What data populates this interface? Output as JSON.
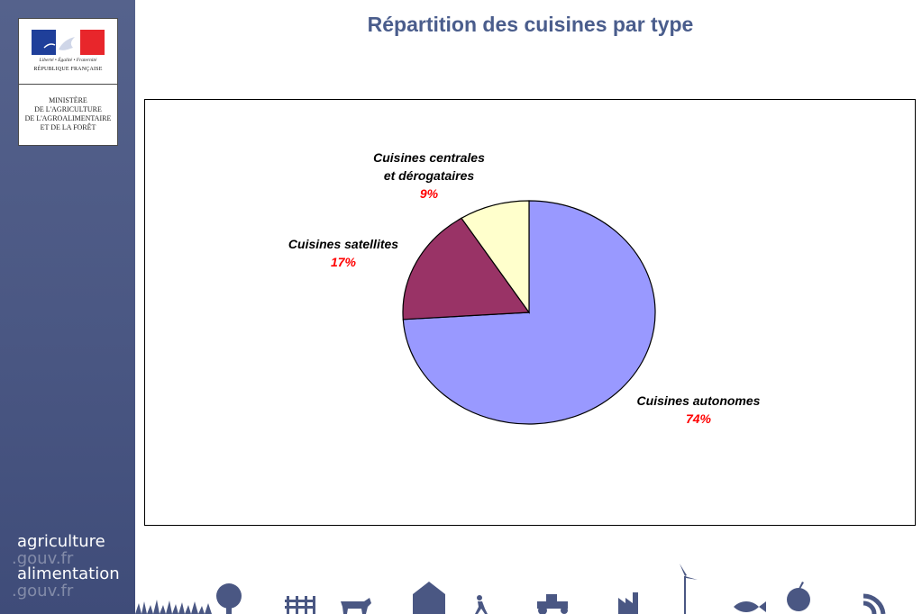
{
  "sidebar": {
    "logo": {
      "motto": "Liberté • Égalité • Fraternité",
      "republique": "RÉPUBLIQUE FRANÇAISE",
      "ministry_lines": [
        "MINISTÈRE",
        "DE L'AGRICULTURE",
        "DE L'AGROALIMENTAIRE",
        "ET DE LA FORÊT"
      ]
    },
    "brand": [
      {
        "word": "agriculture",
        "suffix": ".gouv.fr"
      },
      {
        "word": "alimentation",
        "suffix": ".gouv.fr"
      }
    ]
  },
  "colors": {
    "sidebar": "#4a5783",
    "title": "#4a5d8c",
    "percent_label": "#ff0000",
    "flag_blue": "#1f3f9a",
    "flag_red": "#e8262b",
    "icon_strip": "#4a5783"
  },
  "bottom_strip": {
    "icons": [
      "grass-icon",
      "tree-icon",
      "fence-icon",
      "cow-icon",
      "farmhouse-icon",
      "walker-icon",
      "tractor-icon",
      "factory-icon",
      "wind-turbine-icon",
      "fish-icon",
      "apple-icon",
      "rss-icon"
    ]
  },
  "chart_data": {
    "type": "pie",
    "title": "Répartition des cuisines par type",
    "slices": [
      {
        "label": "Cuisines autonomes",
        "value": 74,
        "value_label": "74%",
        "color": "#9999ff"
      },
      {
        "label": "Cuisines satellites",
        "value": 17,
        "value_label": "17%",
        "color": "#993366"
      },
      {
        "label": "Cuisines centrales et dérogataires",
        "value": 9,
        "value_label": "9%",
        "color": "#ffffcc"
      }
    ],
    "start": "12 o'clock",
    "direction": "clockwise",
    "legend": "none"
  }
}
